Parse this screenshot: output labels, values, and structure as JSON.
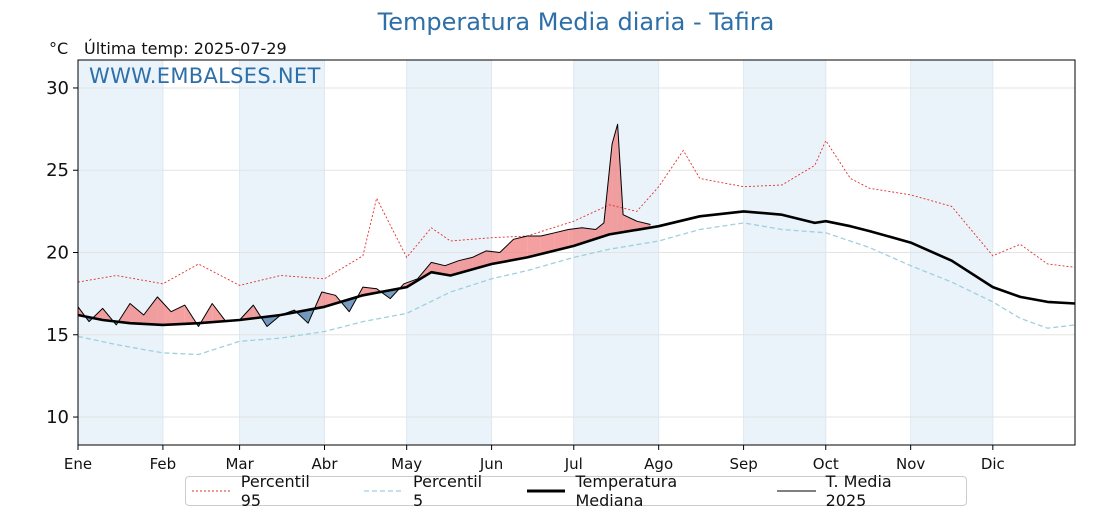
{
  "header": {
    "title": "Temperatura Media diaria - Tafira",
    "unit": "°C",
    "last_temp": "Última temp: 2025-07-29",
    "watermark": "WWW.EMBALSES.NET"
  },
  "colors": {
    "title": "#2e6fa8",
    "p95": "#e03030",
    "p5": "#9fd0e0",
    "median": "#000000",
    "current": "#000000",
    "above_fill": "#f08080",
    "below_fill": "#4a78a8",
    "month_band": "#eaf3fa"
  },
  "legend": [
    {
      "label": "Percentil 95",
      "style": "p95"
    },
    {
      "label": "Percentil 5",
      "style": "p5"
    },
    {
      "label": "Temperatura Mediana",
      "style": "median"
    },
    {
      "label": "T. Media 2025",
      "style": "current"
    }
  ],
  "chart_data": {
    "type": "line",
    "title": "Temperatura Media diaria - Tafira",
    "ylabel": "°C",
    "ylim": [
      8.3,
      31.7
    ],
    "xlim": [
      1,
      365
    ],
    "grid": true,
    "legend_position": "bottom",
    "y_ticks": [
      10,
      15,
      20,
      25,
      30
    ],
    "months": [
      "Ene",
      "Feb",
      "Mar",
      "Abr",
      "May",
      "Jun",
      "Jul",
      "Ago",
      "Sep",
      "Oct",
      "Nov",
      "Dic"
    ],
    "month_start_days": [
      1,
      32,
      60,
      91,
      121,
      152,
      182,
      213,
      244,
      274,
      305,
      335
    ],
    "series": [
      {
        "name": "Percentil 95",
        "key": "p95",
        "x": [
          1,
          15,
          32,
          45,
          60,
          75,
          91,
          105,
          110,
          121,
          130,
          137,
          152,
          165,
          182,
          195,
          205,
          213,
          222,
          228,
          244,
          258,
          270,
          274,
          283,
          290,
          305,
          320,
          335,
          345,
          355,
          365
        ],
        "y": [
          18.2,
          18.6,
          18.1,
          19.3,
          18.0,
          18.6,
          18.4,
          19.8,
          23.3,
          19.7,
          21.5,
          20.7,
          20.9,
          21.0,
          21.9,
          22.9,
          22.5,
          24.0,
          26.2,
          24.5,
          24.0,
          24.1,
          25.3,
          26.8,
          24.5,
          23.9,
          23.5,
          22.8,
          19.8,
          20.5,
          19.3,
          19.1
        ]
      },
      {
        "name": "Percentil 5",
        "key": "p5",
        "x": [
          1,
          15,
          32,
          45,
          60,
          75,
          91,
          105,
          121,
          137,
          152,
          165,
          182,
          195,
          213,
          228,
          244,
          258,
          274,
          290,
          305,
          320,
          335,
          345,
          355,
          365
        ],
        "y": [
          14.9,
          14.4,
          13.9,
          13.8,
          14.6,
          14.8,
          15.2,
          15.8,
          16.3,
          17.6,
          18.4,
          18.9,
          19.7,
          20.2,
          20.7,
          21.4,
          21.8,
          21.4,
          21.2,
          20.3,
          19.2,
          18.2,
          17.0,
          16.0,
          15.4,
          15.6
        ]
      },
      {
        "name": "Temperatura Mediana",
        "key": "median",
        "x": [
          1,
          10,
          20,
          32,
          45,
          60,
          75,
          91,
          105,
          121,
          130,
          137,
          152,
          165,
          182,
          195,
          213,
          228,
          244,
          258,
          270,
          274,
          283,
          290,
          305,
          320,
          335,
          345,
          355,
          365
        ],
        "y": [
          16.2,
          15.9,
          15.7,
          15.6,
          15.7,
          15.9,
          16.2,
          16.7,
          17.4,
          17.9,
          18.8,
          18.6,
          19.3,
          19.7,
          20.4,
          21.1,
          21.6,
          22.2,
          22.5,
          22.3,
          21.8,
          21.9,
          21.6,
          21.3,
          20.6,
          19.5,
          17.9,
          17.3,
          17.0,
          16.9
        ]
      },
      {
        "name": "T. Media 2025",
        "key": "current",
        "x": [
          1,
          5,
          10,
          15,
          20,
          25,
          30,
          35,
          40,
          45,
          50,
          55,
          60,
          65,
          70,
          75,
          80,
          85,
          90,
          95,
          100,
          105,
          110,
          115,
          120,
          125,
          130,
          135,
          140,
          145,
          150,
          155,
          160,
          165,
          170,
          175,
          180,
          185,
          190,
          193,
          196,
          198,
          200,
          205,
          210
        ],
        "y": [
          16.7,
          15.8,
          16.6,
          15.6,
          16.9,
          16.2,
          17.3,
          16.4,
          16.8,
          15.5,
          16.9,
          15.8,
          15.9,
          16.8,
          15.5,
          16.2,
          16.5,
          15.7,
          17.6,
          17.4,
          16.4,
          17.9,
          17.8,
          17.2,
          18.1,
          18.4,
          19.4,
          19.2,
          19.5,
          19.7,
          20.1,
          20.0,
          20.8,
          21.0,
          21.0,
          21.2,
          21.4,
          21.5,
          21.4,
          21.8,
          26.6,
          27.8,
          22.3,
          21.9,
          21.7
        ]
      }
    ]
  }
}
